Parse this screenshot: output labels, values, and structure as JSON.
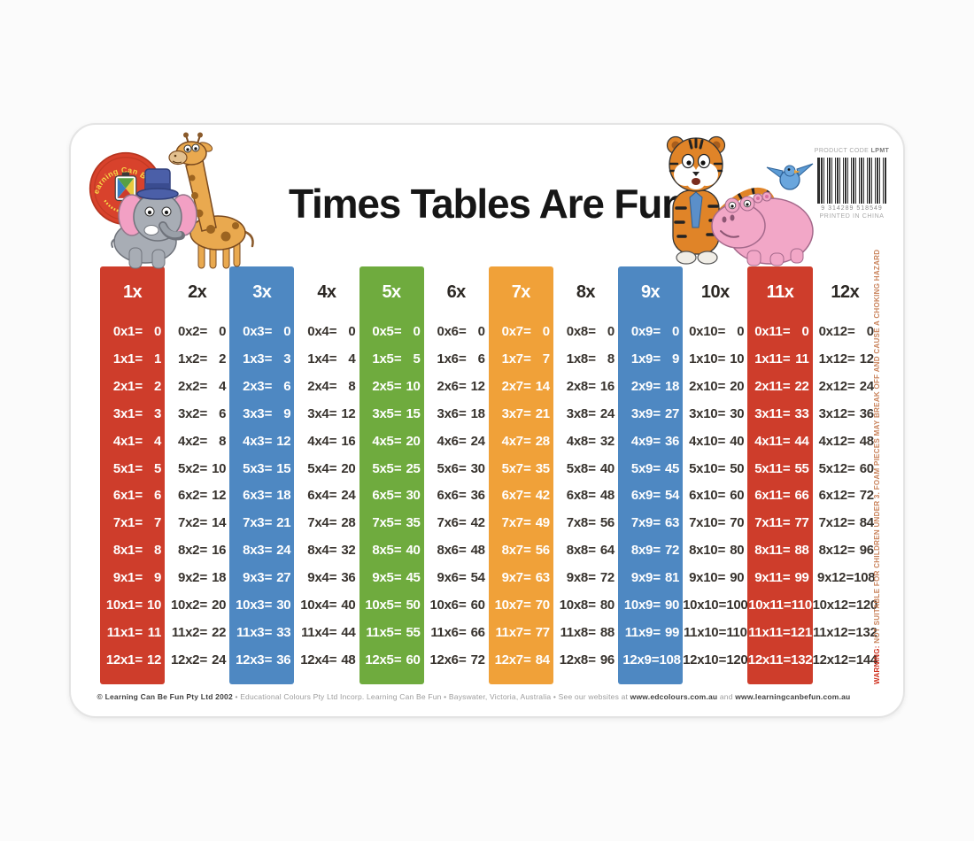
{
  "title": "Times Tables Are Fun",
  "logo": {
    "ring_text": "Learning Can Be Fun"
  },
  "product": {
    "code_label": "PRODUCT CODE",
    "code": "LPMT",
    "barcode_number": "9 314289 518549",
    "printed_in": "PRINTED IN CHINA"
  },
  "warning": {
    "prefix": "WARNING:",
    "text": " NOT SUITABLE FOR CHILDREN UNDER 3. FOAM PIECES MAY BREAK OFF AND CAUSE A CHOKING HAZARD"
  },
  "footer": {
    "parts": [
      {
        "text": "© Learning Can Be Fun Pty Ltd 2002",
        "bold": true
      },
      {
        "text": "  •  Educational Colours Pty Ltd Incorp. Learning Can Be Fun  •  Bayswater, Victoria, Australia  •  See our websites at ",
        "bold": false
      },
      {
        "text": "www.edcolours.com.au",
        "bold": true
      },
      {
        "text": " and ",
        "bold": false
      },
      {
        "text": "www.learningcanbefun.com.au",
        "bold": true
      }
    ]
  },
  "colors": {
    "red": "#ce3d2b",
    "blue": "#4e88c2",
    "green": "#6fab3e",
    "orange": "#f0a139"
  },
  "table": {
    "columns": [
      {
        "header": "1x",
        "color": "red",
        "rows": [
          [
            "0x1",
            "0"
          ],
          [
            "1x1",
            "1"
          ],
          [
            "2x1",
            "2"
          ],
          [
            "3x1",
            "3"
          ],
          [
            "4x1",
            "4"
          ],
          [
            "5x1",
            "5"
          ],
          [
            "6x1",
            "6"
          ],
          [
            "7x1",
            "7"
          ],
          [
            "8x1",
            "8"
          ],
          [
            "9x1",
            "9"
          ],
          [
            "10x1",
            "10"
          ],
          [
            "11x1",
            "11"
          ],
          [
            "12x1",
            "12"
          ]
        ]
      },
      {
        "header": "2x",
        "color": null,
        "rows": [
          [
            "0x2",
            "0"
          ],
          [
            "1x2",
            "2"
          ],
          [
            "2x2",
            "4"
          ],
          [
            "3x2",
            "6"
          ],
          [
            "4x2",
            "8"
          ],
          [
            "5x2",
            "10"
          ],
          [
            "6x2",
            "12"
          ],
          [
            "7x2",
            "14"
          ],
          [
            "8x2",
            "16"
          ],
          [
            "9x2",
            "18"
          ],
          [
            "10x2",
            "20"
          ],
          [
            "11x2",
            "22"
          ],
          [
            "12x2",
            "24"
          ]
        ]
      },
      {
        "header": "3x",
        "color": "blue",
        "rows": [
          [
            "0x3",
            "0"
          ],
          [
            "1x3",
            "3"
          ],
          [
            "2x3",
            "6"
          ],
          [
            "3x3",
            "9"
          ],
          [
            "4x3",
            "12"
          ],
          [
            "5x3",
            "15"
          ],
          [
            "6x3",
            "18"
          ],
          [
            "7x3",
            "21"
          ],
          [
            "8x3",
            "24"
          ],
          [
            "9x3",
            "27"
          ],
          [
            "10x3",
            "30"
          ],
          [
            "11x3",
            "33"
          ],
          [
            "12x3",
            "36"
          ]
        ]
      },
      {
        "header": "4x",
        "color": null,
        "rows": [
          [
            "0x4",
            "0"
          ],
          [
            "1x4",
            "4"
          ],
          [
            "2x4",
            "8"
          ],
          [
            "3x4",
            "12"
          ],
          [
            "4x4",
            "16"
          ],
          [
            "5x4",
            "20"
          ],
          [
            "6x4",
            "24"
          ],
          [
            "7x4",
            "28"
          ],
          [
            "8x4",
            "32"
          ],
          [
            "9x4",
            "36"
          ],
          [
            "10x4",
            "40"
          ],
          [
            "11x4",
            "44"
          ],
          [
            "12x4",
            "48"
          ]
        ]
      },
      {
        "header": "5x",
        "color": "green",
        "rows": [
          [
            "0x5",
            "0"
          ],
          [
            "1x5",
            "5"
          ],
          [
            "2x5",
            "10"
          ],
          [
            "3x5",
            "15"
          ],
          [
            "4x5",
            "20"
          ],
          [
            "5x5",
            "25"
          ],
          [
            "6x5",
            "30"
          ],
          [
            "7x5",
            "35"
          ],
          [
            "8x5",
            "40"
          ],
          [
            "9x5",
            "45"
          ],
          [
            "10x5",
            "50"
          ],
          [
            "11x5",
            "55"
          ],
          [
            "12x5",
            "60"
          ]
        ]
      },
      {
        "header": "6x",
        "color": null,
        "rows": [
          [
            "0x6",
            "0"
          ],
          [
            "1x6",
            "6"
          ],
          [
            "2x6",
            "12"
          ],
          [
            "3x6",
            "18"
          ],
          [
            "4x6",
            "24"
          ],
          [
            "5x6",
            "30"
          ],
          [
            "6x6",
            "36"
          ],
          [
            "7x6",
            "42"
          ],
          [
            "8x6",
            "48"
          ],
          [
            "9x6",
            "54"
          ],
          [
            "10x6",
            "60"
          ],
          [
            "11x6",
            "66"
          ],
          [
            "12x6",
            "72"
          ]
        ]
      },
      {
        "header": "7x",
        "color": "orange",
        "rows": [
          [
            "0x7",
            "0"
          ],
          [
            "1x7",
            "7"
          ],
          [
            "2x7",
            "14"
          ],
          [
            "3x7",
            "21"
          ],
          [
            "4x7",
            "28"
          ],
          [
            "5x7",
            "35"
          ],
          [
            "6x7",
            "42"
          ],
          [
            "7x7",
            "49"
          ],
          [
            "8x7",
            "56"
          ],
          [
            "9x7",
            "63"
          ],
          [
            "10x7",
            "70"
          ],
          [
            "11x7",
            "77"
          ],
          [
            "12x7",
            "84"
          ]
        ]
      },
      {
        "header": "8x",
        "color": null,
        "rows": [
          [
            "0x8",
            "0"
          ],
          [
            "1x8",
            "8"
          ],
          [
            "2x8",
            "16"
          ],
          [
            "3x8",
            "24"
          ],
          [
            "4x8",
            "32"
          ],
          [
            "5x8",
            "40"
          ],
          [
            "6x8",
            "48"
          ],
          [
            "7x8",
            "56"
          ],
          [
            "8x8",
            "64"
          ],
          [
            "9x8",
            "72"
          ],
          [
            "10x8",
            "80"
          ],
          [
            "11x8",
            "88"
          ],
          [
            "12x8",
            "96"
          ]
        ]
      },
      {
        "header": "9x",
        "color": "blue",
        "rows": [
          [
            "0x9",
            "0"
          ],
          [
            "1x9",
            "9"
          ],
          [
            "2x9",
            "18"
          ],
          [
            "3x9",
            "27"
          ],
          [
            "4x9",
            "36"
          ],
          [
            "5x9",
            "45"
          ],
          [
            "6x9",
            "54"
          ],
          [
            "7x9",
            "63"
          ],
          [
            "8x9",
            "72"
          ],
          [
            "9x9",
            "81"
          ],
          [
            "10x9",
            "90"
          ],
          [
            "11x9",
            "99"
          ],
          [
            "12x9",
            "108"
          ]
        ]
      },
      {
        "header": "10x",
        "color": null,
        "rows": [
          [
            "0x10",
            "0"
          ],
          [
            "1x10",
            "10"
          ],
          [
            "2x10",
            "20"
          ],
          [
            "3x10",
            "30"
          ],
          [
            "4x10",
            "40"
          ],
          [
            "5x10",
            "50"
          ],
          [
            "6x10",
            "60"
          ],
          [
            "7x10",
            "70"
          ],
          [
            "8x10",
            "80"
          ],
          [
            "9x10",
            "90"
          ],
          [
            "10x10",
            "100"
          ],
          [
            "11x10",
            "110"
          ],
          [
            "12x10",
            "120"
          ]
        ]
      },
      {
        "header": "11x",
        "color": "red",
        "rows": [
          [
            "0x11",
            "0"
          ],
          [
            "1x11",
            "11"
          ],
          [
            "2x11",
            "22"
          ],
          [
            "3x11",
            "33"
          ],
          [
            "4x11",
            "44"
          ],
          [
            "5x11",
            "55"
          ],
          [
            "6x11",
            "66"
          ],
          [
            "7x11",
            "77"
          ],
          [
            "8x11",
            "88"
          ],
          [
            "9x11",
            "99"
          ],
          [
            "10x11",
            "110"
          ],
          [
            "11x11",
            "121"
          ],
          [
            "12x11",
            "132"
          ]
        ]
      },
      {
        "header": "12x",
        "color": null,
        "rows": [
          [
            "0x12",
            "0"
          ],
          [
            "1x12",
            "12"
          ],
          [
            "2x12",
            "24"
          ],
          [
            "3x12",
            "36"
          ],
          [
            "4x12",
            "48"
          ],
          [
            "5x12",
            "60"
          ],
          [
            "6x12",
            "72"
          ],
          [
            "7x12",
            "84"
          ],
          [
            "8x12",
            "96"
          ],
          [
            "9x12",
            "108"
          ],
          [
            "10x12",
            "120"
          ],
          [
            "11x12",
            "132"
          ],
          [
            "12x12",
            "144"
          ]
        ]
      }
    ]
  }
}
